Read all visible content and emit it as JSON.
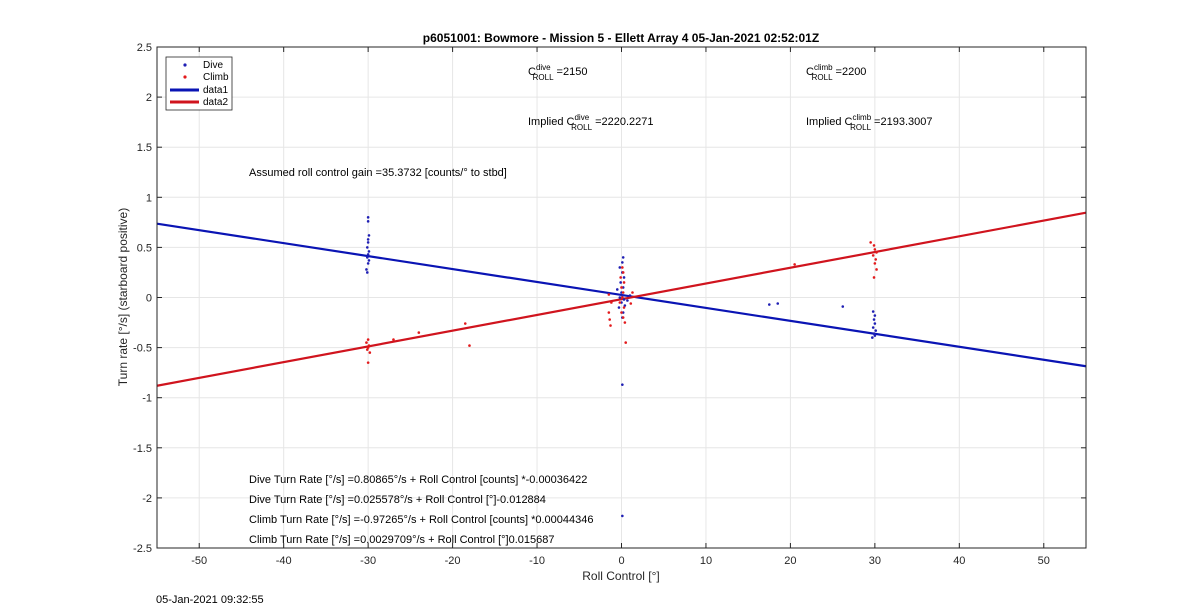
{
  "chart_data": {
    "type": "scatter",
    "title": "p6051001: Bowmore - Mission 5 - Ellett Array 4 05-Jan-2021 02:52:01Z",
    "xlabel": "Roll Control [°]",
    "ylabel": "Turn rate [°/s] (starboard positive)",
    "xlim": [
      -55,
      55
    ],
    "ylim": [
      -2.5,
      2.5
    ],
    "xticks": [
      -50,
      -40,
      -30,
      -20,
      -10,
      0,
      10,
      20,
      30,
      40,
      50
    ],
    "yticks": [
      -2.5,
      -2,
      -1.5,
      -1,
      -0.5,
      0,
      0.5,
      1,
      1.5,
      2,
      2.5
    ],
    "grid": true,
    "legend_location": "top-left",
    "colors": {
      "dive": "#1f1fb4",
      "climb": "#e31a1c",
      "data1": "#0a14b4",
      "data2": "#d0141e"
    },
    "series": [
      {
        "name": "Dive",
        "kind": "points",
        "points": [
          [
            -30,
            0.8
          ],
          [
            -30,
            0.76
          ],
          [
            -29.9,
            0.62
          ],
          [
            -30,
            0.58
          ],
          [
            -30,
            0.55
          ],
          [
            -30.1,
            0.5
          ],
          [
            -29.9,
            0.46
          ],
          [
            -30,
            0.43
          ],
          [
            -30.1,
            0.4
          ],
          [
            -29.9,
            0.37
          ],
          [
            -30,
            0.34
          ],
          [
            -30.2,
            0.28
          ],
          [
            -30.1,
            0.25
          ],
          [
            0.2,
            0.4
          ],
          [
            0.1,
            0.35
          ],
          [
            -0.2,
            0.3
          ],
          [
            0.1,
            0.25
          ],
          [
            0.3,
            0.2
          ],
          [
            -0.1,
            0.15
          ],
          [
            0.2,
            0.1
          ],
          [
            0,
            0.05
          ],
          [
            0.1,
            0.02
          ],
          [
            -0.2,
            0.0
          ],
          [
            0.3,
            -0.02
          ],
          [
            0,
            -0.05
          ],
          [
            0.4,
            -0.08
          ],
          [
            -0.3,
            -0.1
          ],
          [
            0.2,
            -0.15
          ],
          [
            0.1,
            -0.2
          ],
          [
            1.0,
            0.02
          ],
          [
            0.7,
            -0.03
          ],
          [
            -0.5,
            0.08
          ],
          [
            0.1,
            -0.87
          ],
          [
            0.1,
            -2.18
          ],
          [
            17.5,
            -0.07
          ],
          [
            18.5,
            -0.06
          ],
          [
            26.2,
            -0.09
          ],
          [
            29.8,
            -0.14
          ],
          [
            30,
            -0.18
          ],
          [
            29.9,
            -0.22
          ],
          [
            30,
            -0.26
          ],
          [
            29.8,
            -0.3
          ],
          [
            30.1,
            -0.33
          ],
          [
            29.9,
            -0.36
          ],
          [
            30,
            -0.38
          ],
          [
            29.7,
            -0.4
          ]
        ]
      },
      {
        "name": "Climb",
        "kind": "points",
        "points": [
          [
            -30,
            -0.42
          ],
          [
            -30.2,
            -0.45
          ],
          [
            -29.9,
            -0.48
          ],
          [
            -30,
            -0.5
          ],
          [
            -30.1,
            -0.52
          ],
          [
            -29.8,
            -0.55
          ],
          [
            -30,
            -0.65
          ],
          [
            -27,
            -0.42
          ],
          [
            -24,
            -0.35
          ],
          [
            -18.5,
            -0.26
          ],
          [
            -18,
            -0.48
          ],
          [
            0.1,
            0.3
          ],
          [
            0.2,
            0.25
          ],
          [
            -0.1,
            0.2
          ],
          [
            0.3,
            0.15
          ],
          [
            0,
            0.1
          ],
          [
            0.2,
            0.05
          ],
          [
            0.1,
            0.0
          ],
          [
            -0.2,
            -0.05
          ],
          [
            0.3,
            -0.1
          ],
          [
            0,
            -0.15
          ],
          [
            0.2,
            -0.2
          ],
          [
            0.4,
            -0.25
          ],
          [
            0.5,
            -0.45
          ],
          [
            -1.2,
            -0.05
          ],
          [
            -1.5,
            -0.15
          ],
          [
            -1.4,
            -0.22
          ],
          [
            -1.3,
            -0.28
          ],
          [
            -1.5,
            0.03
          ],
          [
            1.3,
            0.05
          ],
          [
            1.1,
            -0.06
          ],
          [
            20.5,
            0.33
          ],
          [
            29.5,
            0.55
          ],
          [
            29.9,
            0.52
          ],
          [
            30,
            0.48
          ],
          [
            30.2,
            0.45
          ],
          [
            29.8,
            0.42
          ],
          [
            30.1,
            0.38
          ],
          [
            30,
            0.34
          ],
          [
            30.2,
            0.28
          ],
          [
            29.9,
            0.2
          ]
        ]
      },
      {
        "name": "data1",
        "kind": "line",
        "x": [
          -55,
          55
        ],
        "y": [
          0.7367,
          -0.6861
        ]
      },
      {
        "name": "data2",
        "kind": "line",
        "x": [
          -55,
          55
        ],
        "y": [
          -0.8806,
          0.8462
        ]
      }
    ],
    "annotations": {
      "c_roll_dive": "=2150",
      "c_roll_climb": "=2200",
      "implied_prefix": "Implied C",
      "implied_dive": "=2220.2271",
      "implied_climb": "=2193.3007",
      "c_letter": "C",
      "sup_dive": "dive",
      "sup_climb": "climb",
      "sub_roll": "ROLL",
      "gain": "Assumed roll control gain =35.3732 [counts/° to stbd]",
      "fits": [
        "Dive Turn Rate [°/s] =0.80865°/s + Roll Control [counts] *-0.00036422",
        "Dive Turn Rate [°/s] =0.025578°/s + Roll Control [°]-0.012884",
        "Climb Turn Rate [°/s] =-0.97265°/s + Roll Control [counts] *0.00044346",
        "Climb Turn Rate [°/s] =0.0029709°/s + Roll Control [°]0.015687"
      ]
    }
  },
  "timestamp": "05-Jan-2021 09:32:55"
}
